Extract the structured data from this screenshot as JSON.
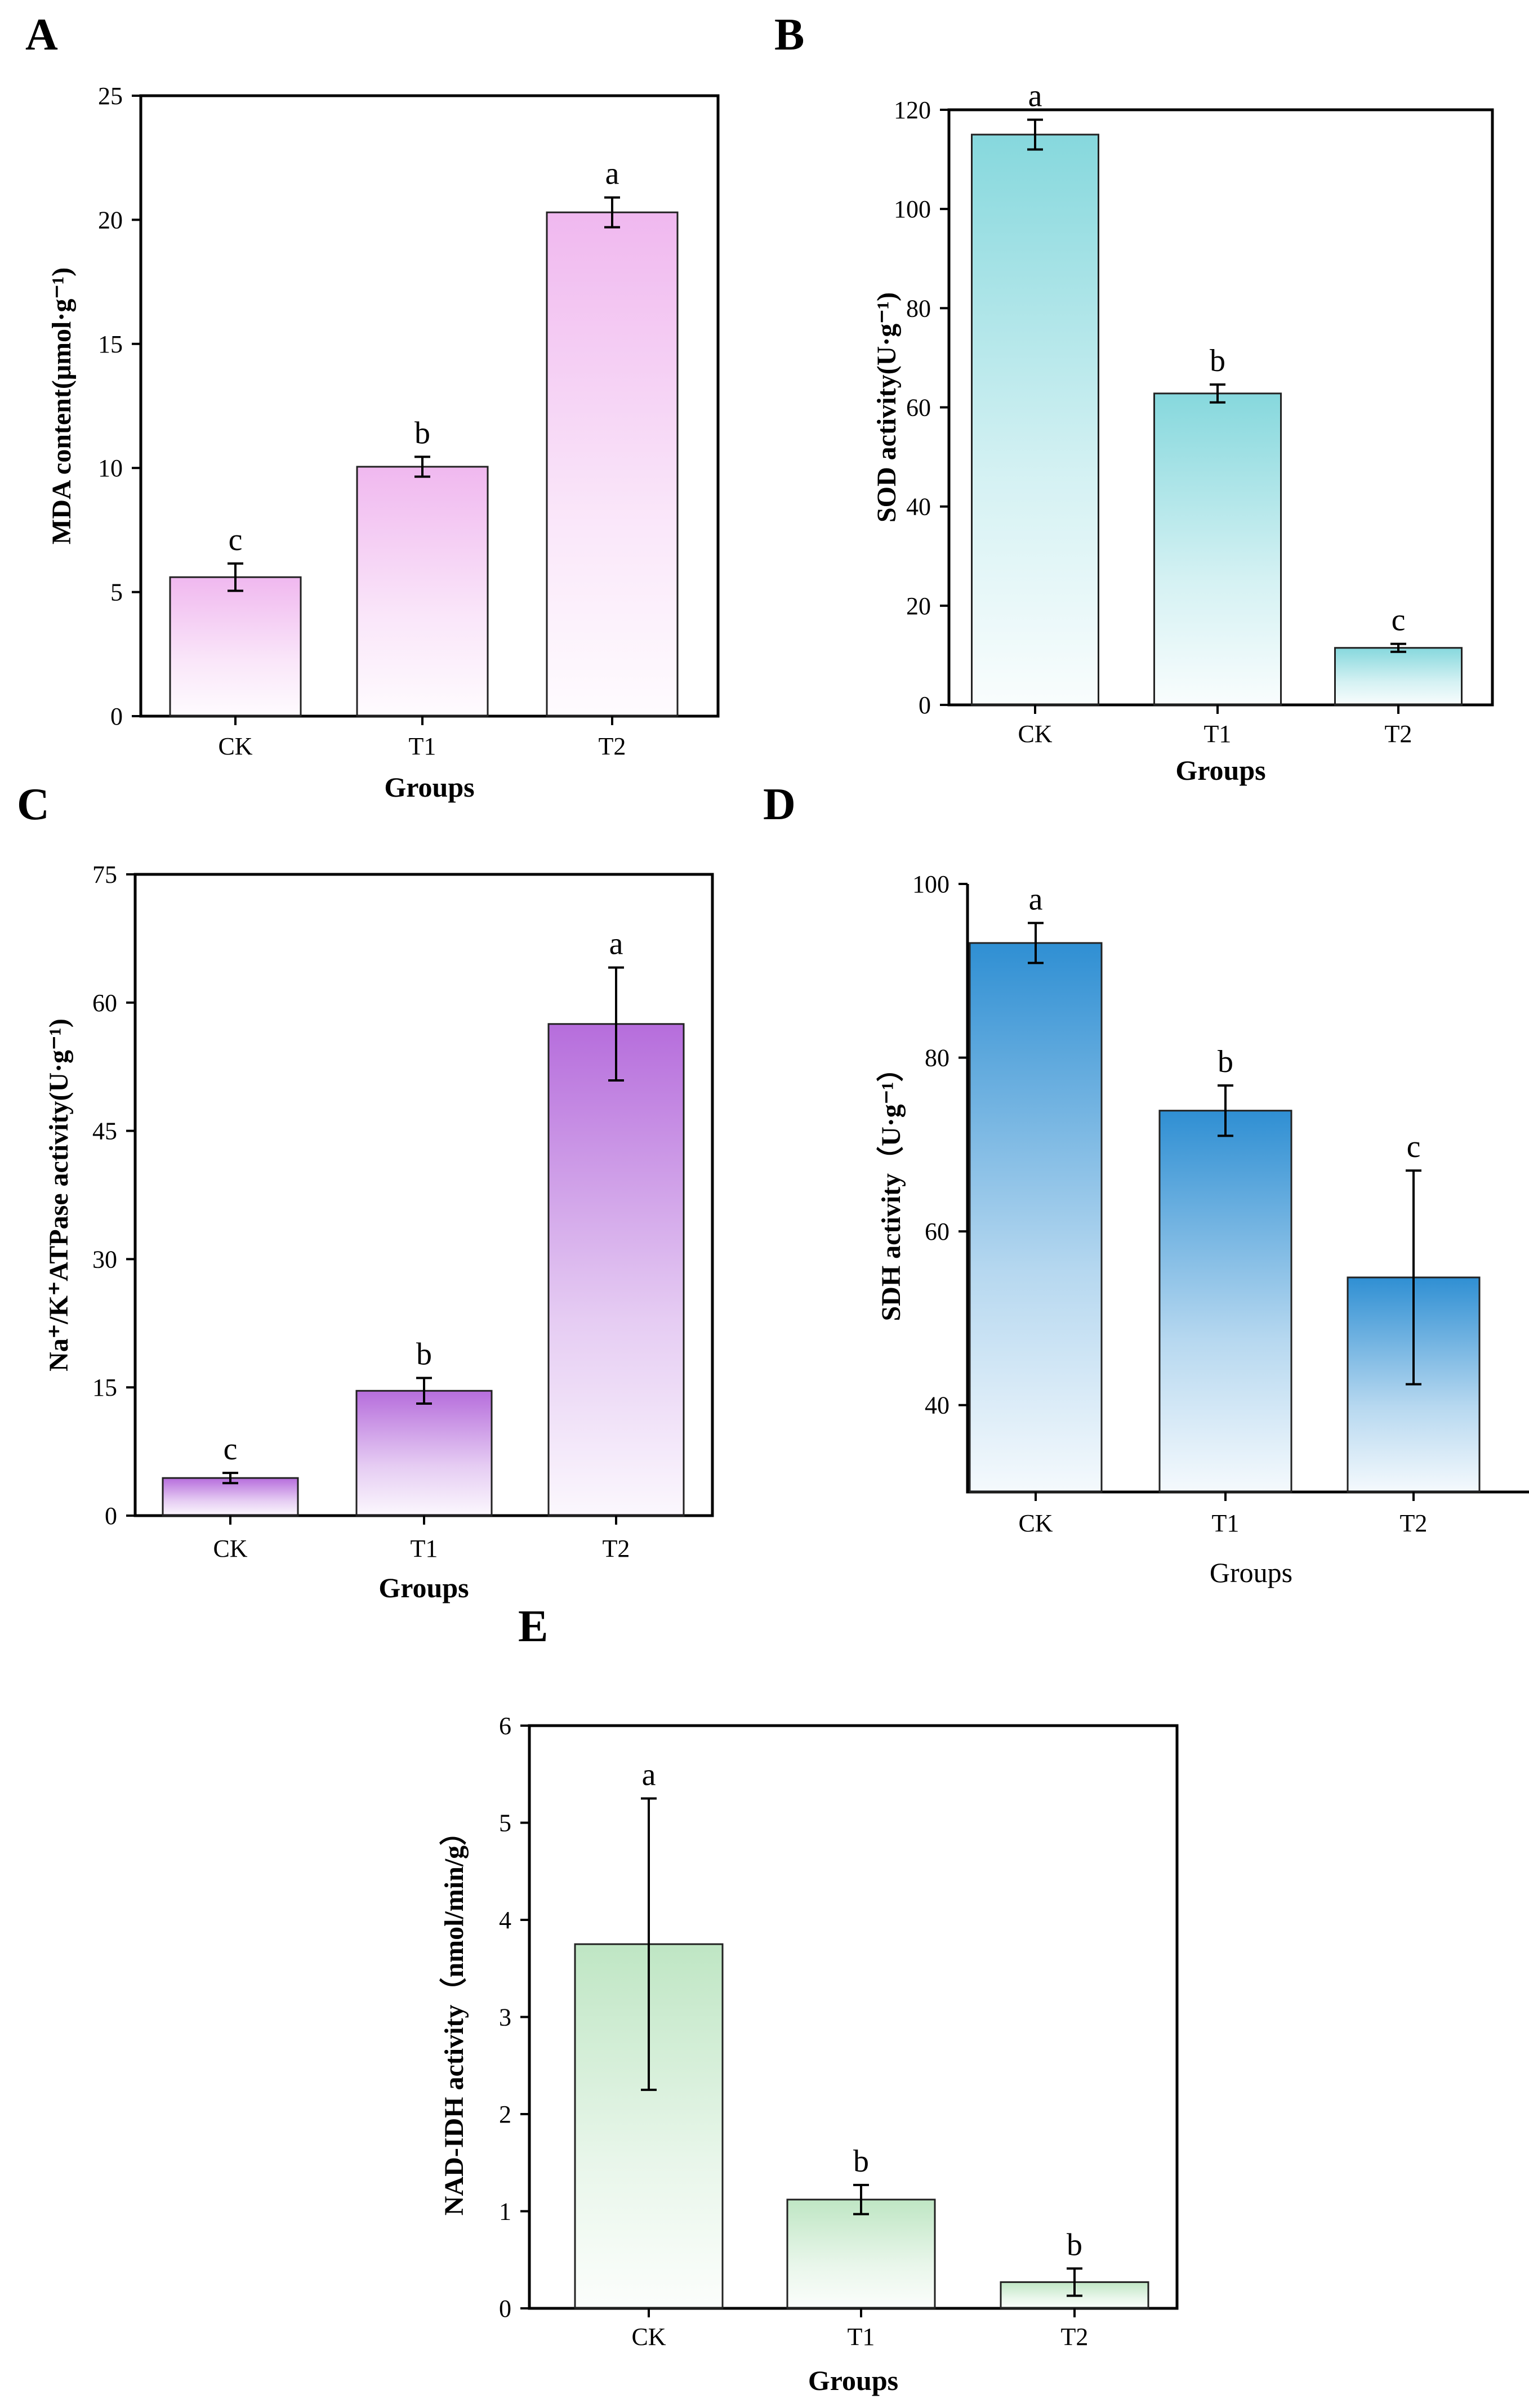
{
  "chart_data": [
    {
      "panel": "A",
      "type": "bar",
      "categories": [
        "CK",
        "T1",
        "T2"
      ],
      "values": [
        5.6,
        10.05,
        20.3
      ],
      "errors": [
        0.55,
        0.4,
        0.6
      ],
      "sig_letters": [
        "c",
        "b",
        "a"
      ],
      "ylabel": "MDA content(μmol·g⁻¹)",
      "xlabel": "Groups",
      "ylim": [
        0,
        25
      ],
      "yticks": [
        0,
        5,
        10,
        15,
        20,
        25
      ],
      "color": "#f0b8ef",
      "xlabel_bold": true,
      "framed": true
    },
    {
      "panel": "B",
      "type": "bar",
      "categories": [
        "CK",
        "T1",
        "T2"
      ],
      "values": [
        115,
        62.8,
        11.5
      ],
      "errors": [
        3,
        1.8,
        0.8
      ],
      "sig_letters": [
        "a",
        "b",
        "c"
      ],
      "ylabel": "SOD activity(U·g⁻¹)",
      "xlabel": "Groups",
      "ylim": [
        0,
        120
      ],
      "yticks": [
        0,
        20,
        40,
        60,
        80,
        100,
        120
      ],
      "color": "#86d8dd",
      "xlabel_bold": true,
      "framed": true
    },
    {
      "panel": "C",
      "type": "bar",
      "categories": [
        "CK",
        "T1",
        "T2"
      ],
      "values": [
        4.4,
        14.6,
        57.5
      ],
      "errors": [
        0.6,
        1.5,
        6.6
      ],
      "sig_letters": [
        "c",
        "b",
        "a"
      ],
      "ylabel": "Na⁺/K⁺ATPase activity(U·g⁻¹)",
      "xlabel": "Groups",
      "ylim": [
        0,
        75
      ],
      "yticks": [
        0,
        15,
        30,
        45,
        60,
        75
      ],
      "color": "#b66ddc",
      "xlabel_bold": true,
      "framed": true
    },
    {
      "panel": "D",
      "type": "bar",
      "categories": [
        "CK",
        "T1",
        "T2"
      ],
      "values": [
        93.2,
        73.9,
        54.7
      ],
      "errors": [
        2.3,
        2.9,
        12.3
      ],
      "sig_letters": [
        "a",
        "b",
        "c"
      ],
      "ylabel": "SDH activity（U·g⁻¹）",
      "xlabel": "Groups",
      "ylim": [
        30,
        100
      ],
      "yticks": [
        40,
        60,
        80,
        100
      ],
      "color": "#2f8fd3",
      "xlabel_bold": false,
      "framed": false
    },
    {
      "panel": "E",
      "type": "bar",
      "categories": [
        "CK",
        "T1",
        "T2"
      ],
      "values": [
        3.75,
        1.12,
        0.27
      ],
      "errors": [
        1.5,
        0.15,
        0.14
      ],
      "sig_letters": [
        "a",
        "b",
        "b"
      ],
      "ylabel": "NAD-IDH activity（nmol/min/g）",
      "xlabel": "Groups",
      "ylim": [
        0,
        6
      ],
      "yticks": [
        0,
        1,
        2,
        3,
        4,
        5,
        6
      ],
      "color": "#bfe6c4",
      "xlabel_bold": true,
      "framed": true
    }
  ]
}
